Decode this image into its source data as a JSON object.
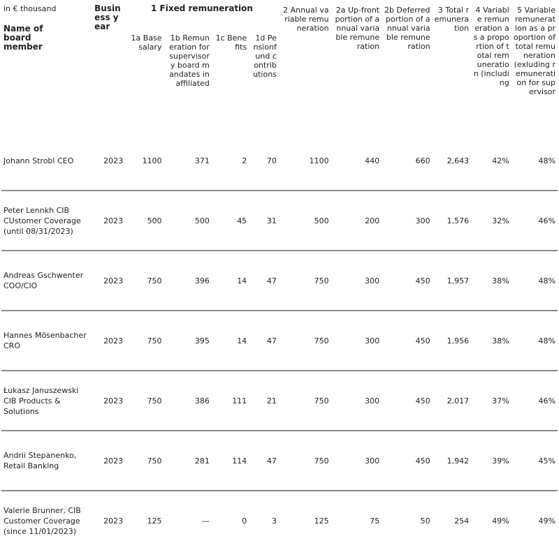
{
  "table": {
    "unit": "in € thousand",
    "name_header": "Name of board member",
    "year_header": "Business year",
    "group_header": "1 Fixed remuneration",
    "columns": [
      "1a Base salary",
      "1b Remuneration for supervisory board mandates in affiliated",
      "1c Benefits",
      "1d Pensionfund contributions",
      "2 Annual variable remuneration",
      "2a Up-front portion of annual variable remuneration",
      "2b Deferred portion of annual variable remuneration",
      "3 Total remuneration",
      "4 Variable remuneration as a proportion of total remuneration (including",
      "5 Variable remuneration as a proportion of total remuneration (exluding remuneration for supervisor"
    ],
    "rows": [
      {
        "name": "Johann Strobl CEO",
        "year": "2023",
        "values": [
          "1100",
          "371",
          "2",
          "70",
          "1100",
          "440",
          "660",
          "2,643",
          "42%",
          "48%"
        ]
      },
      {
        "name": "Peter Lennkh CIB CUstomer Coverage (until 08/31/2023)",
        "year": "2023",
        "values": [
          "500",
          "500",
          "45",
          "31",
          "500",
          "200",
          "300",
          "1,576",
          "32%",
          "46%"
        ]
      },
      {
        "name": "Andreas Gschwenter COO/CIO",
        "year": "2023",
        "values": [
          "750",
          "396",
          "14",
          "47",
          "750",
          "300",
          "450",
          "1,957",
          "38%",
          "48%"
        ]
      },
      {
        "name": "Hannes Mösenbacher CRO",
        "year": "2023",
        "values": [
          "750",
          "395",
          "14",
          "47",
          "750",
          "300",
          "450",
          "1,956",
          "38%",
          "48%"
        ]
      },
      {
        "name": "Łukasz Januszewski CIB Products & Solutions",
        "year": "2023",
        "values": [
          "750",
          "386",
          "111",
          "21",
          "750",
          "300",
          "450",
          "2,017",
          "37%",
          "46%"
        ]
      },
      {
        "name": "Andrii Stepanenko, Retail Banking",
        "year": "2023",
        "values": [
          "750",
          "281",
          "114",
          "47",
          "750",
          "300",
          "450",
          "1,942",
          "39%",
          "45%"
        ]
      },
      {
        "name": "Valerie Brunner, CIB Customer Coverage (since 11/01/2023)",
        "year": "2023",
        "values": [
          "125",
          "—",
          "0",
          "3",
          "125",
          "75",
          "50",
          "254",
          "49%",
          "49%"
        ]
      }
    ]
  }
}
